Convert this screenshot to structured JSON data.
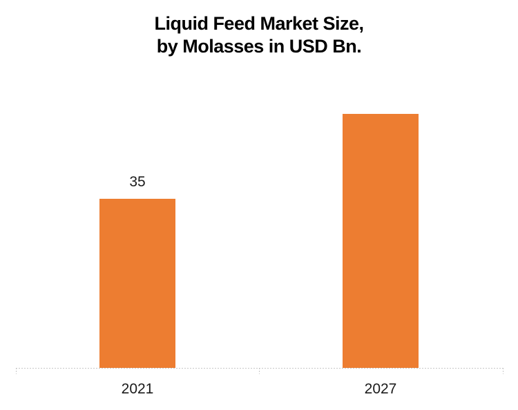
{
  "title": {
    "line1": "Liquid Feed Market Size,",
    "line2": "by Molasses in USD Bn."
  },
  "chart_data": {
    "type": "bar",
    "title": "Liquid Feed Market Size, by Molasses in USD Bn.",
    "categories": [
      "2021",
      "2027"
    ],
    "values": [
      35,
      52.6
    ],
    "bar_labels": [
      "35",
      ""
    ],
    "xlabel": "",
    "ylabel": "",
    "ylim": [
      0,
      75
    ],
    "grid": false,
    "legend": false,
    "bar_color": "#ED7D31",
    "axis_line_color": "#C6C6C6",
    "text_color": "#1A1A1A",
    "notes": "Only the 2021 bar carries a data label (35); the 2027 value is unlabeled and estimated from bar height."
  }
}
